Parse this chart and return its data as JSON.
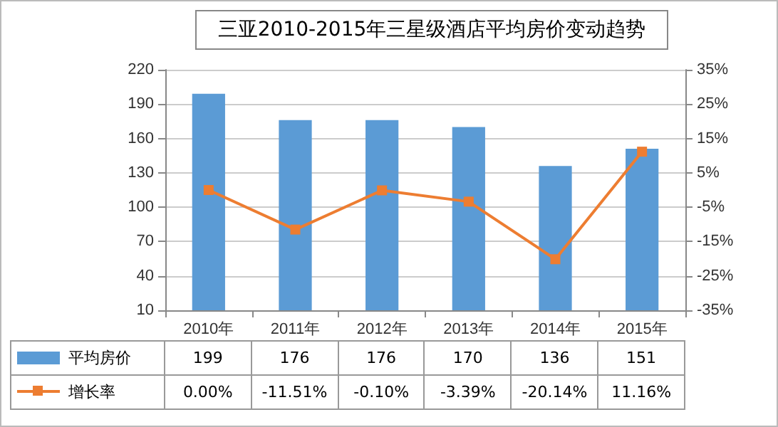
{
  "chart_data": {
    "type": "bar",
    "title": "三亚2010-2015年三星级酒店平均房价变动趋势",
    "categories": [
      "2010年",
      "2011年",
      "2012年",
      "2013年",
      "2014年",
      "2015年"
    ],
    "series": [
      {
        "name": "平均房价",
        "color": "#5b9bd5",
        "values": [
          199,
          176,
          176,
          170,
          136,
          151
        ],
        "value_labels": [
          "199",
          "176",
          "176",
          "170",
          "136",
          "151"
        ]
      },
      {
        "name": "增长率",
        "type": "line",
        "axis": "y2",
        "color": "#ed7d31",
        "marker": "square",
        "values": [
          0.0,
          -11.51,
          -0.1,
          -3.39,
          -20.14,
          11.16
        ],
        "value_labels": [
          "0.00%",
          "-11.51%",
          "-0.10%",
          "-3.39%",
          "-20.14%",
          "11.16%"
        ]
      }
    ],
    "ylim": [
      10,
      220
    ],
    "yticks": [
      10,
      40,
      70,
      100,
      130,
      160,
      190,
      220
    ],
    "y2lim": [
      -35,
      35
    ],
    "y2ticks": [
      {
        "value": -35,
        "label": "-35%"
      },
      {
        "value": -25,
        "label": "-25%"
      },
      {
        "value": -15,
        "label": "-15%"
      },
      {
        "value": -5,
        "label": "-5%"
      },
      {
        "value": 5,
        "label": "5%"
      },
      {
        "value": 15,
        "label": "15%"
      },
      {
        "value": 25,
        "label": "25%"
      },
      {
        "value": 35,
        "label": "35%"
      }
    ],
    "grid": "y",
    "legend": "bottom left"
  }
}
